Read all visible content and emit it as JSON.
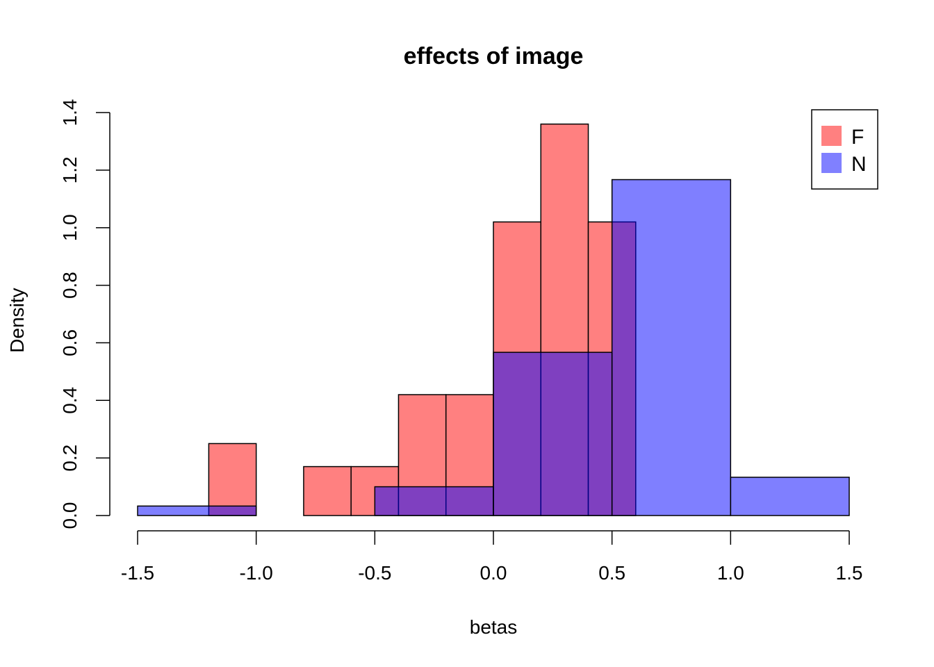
{
  "chart_data": {
    "type": "bar",
    "title": "effects of image",
    "xlabel": "betas",
    "ylabel": "Density",
    "xlim": [
      -1.5,
      1.5
    ],
    "ylim": [
      0,
      1.4
    ],
    "x_ticks": [
      "-1.5",
      "-1.0",
      "-0.5",
      "0.0",
      "0.5",
      "1.0",
      "1.5"
    ],
    "y_ticks": [
      "0.0",
      "0.2",
      "0.4",
      "0.6",
      "0.8",
      "1.0",
      "1.2",
      "1.4"
    ],
    "grid": false,
    "legend_position": "top-right",
    "series": [
      {
        "name": "F",
        "color": "#ff8080",
        "bins": [
          {
            "x0": -1.2,
            "x1": -1.0,
            "density": 0.25
          },
          {
            "x0": -1.0,
            "x1": -0.8,
            "density": 0.0
          },
          {
            "x0": -0.8,
            "x1": -0.6,
            "density": 0.17
          },
          {
            "x0": -0.6,
            "x1": -0.4,
            "density": 0.17
          },
          {
            "x0": -0.4,
            "x1": -0.2,
            "density": 0.42
          },
          {
            "x0": -0.2,
            "x1": 0.0,
            "density": 0.42
          },
          {
            "x0": 0.0,
            "x1": 0.2,
            "density": 1.02
          },
          {
            "x0": 0.2,
            "x1": 0.4,
            "density": 1.36
          },
          {
            "x0": 0.4,
            "x1": 0.6,
            "density": 1.02
          }
        ]
      },
      {
        "name": "N",
        "color": "#8080ff",
        "bins": [
          {
            "x0": -1.5,
            "x1": -1.0,
            "density": 0.033
          },
          {
            "x0": -1.0,
            "x1": -0.5,
            "density": 0.0
          },
          {
            "x0": -0.5,
            "x1": 0.0,
            "density": 0.1
          },
          {
            "x0": 0.0,
            "x1": 0.5,
            "density": 0.567
          },
          {
            "x0": 0.5,
            "x1": 1.0,
            "density": 1.167
          },
          {
            "x0": 1.0,
            "x1": 1.5,
            "density": 0.133
          }
        ]
      }
    ]
  }
}
